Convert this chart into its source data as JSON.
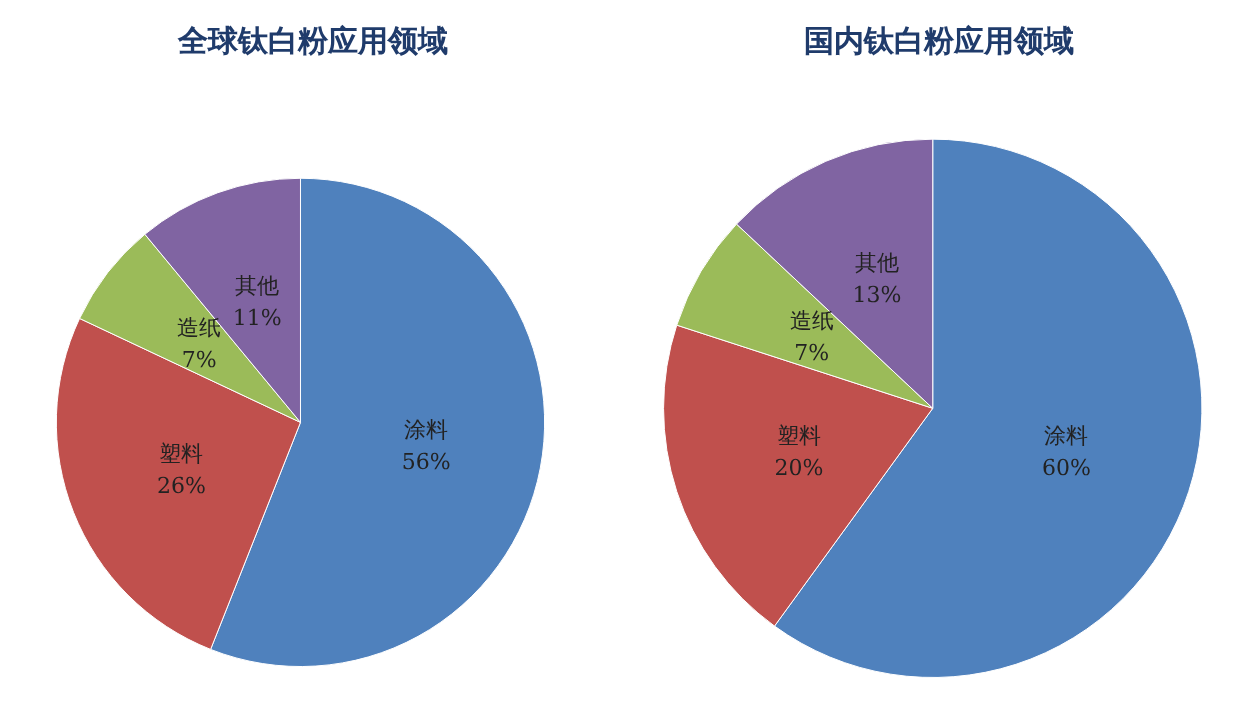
{
  "chart_data": [
    {
      "type": "pie",
      "title": "全球钛白粉应用领域",
      "categories": [
        "涂料",
        "塑料",
        "造纸",
        "其他"
      ],
      "values": [
        56,
        26,
        7,
        11
      ],
      "value_labels": [
        "56%",
        "26%",
        "7%",
        "11%"
      ],
      "colors": [
        "#4f81bd",
        "#c0504d",
        "#9bbb59",
        "#8064a2"
      ],
      "legend": false
    },
    {
      "type": "pie",
      "title": "国内钛白粉应用领域",
      "categories": [
        "涂料",
        "塑料",
        "造纸",
        "其他"
      ],
      "values": [
        60,
        20,
        7,
        13
      ],
      "value_labels": [
        "60%",
        "20%",
        "7%",
        "13%"
      ],
      "colors": [
        "#4f81bd",
        "#c0504d",
        "#9bbb59",
        "#8064a2"
      ],
      "legend": false
    }
  ]
}
